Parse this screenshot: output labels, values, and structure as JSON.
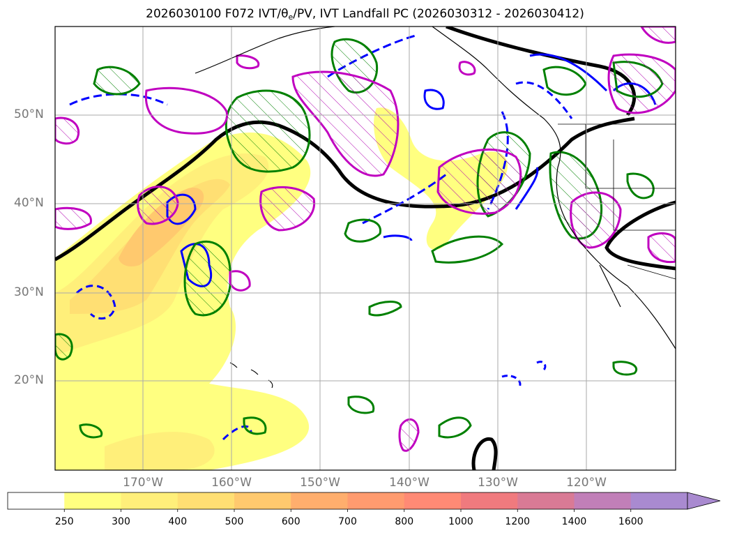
{
  "title": {
    "prefix": "2026030100 F072 IVT/",
    "theta": "θ",
    "theta_sub": "e",
    "suffix": "/PV, IVT Landfall PC (2026030312 - 2026030412)"
  },
  "axes": {
    "lat_labels": [
      "50°N",
      "40°N",
      "30°N",
      "20°N"
    ],
    "lon_labels": [
      "170°W",
      "160°W",
      "150°W",
      "140°W",
      "130°W",
      "120°W"
    ]
  },
  "colorbar": {
    "levels": [
      "250",
      "300",
      "400",
      "500",
      "600",
      "700",
      "800",
      "1000",
      "1200",
      "1400",
      "1600"
    ],
    "colors": [
      "#ffffff",
      "#ffff80",
      "#ffef7a",
      "#ffdf73",
      "#ffc96e",
      "#ffae6d",
      "#ff9b6f",
      "#ff8a75",
      "#f07a7e",
      "#d97a95",
      "#c17fb8",
      "#a98ad0"
    ]
  },
  "legend_colors": {
    "ivt_fill_low": "#ffff80",
    "ivt_fill_high": "#ffae6d",
    "geopotential_contour": "#000000",
    "theta_e_contour": "#0000ff",
    "pv_contour_green": "#008000",
    "pv_contour_magenta": "#c000c0"
  }
}
